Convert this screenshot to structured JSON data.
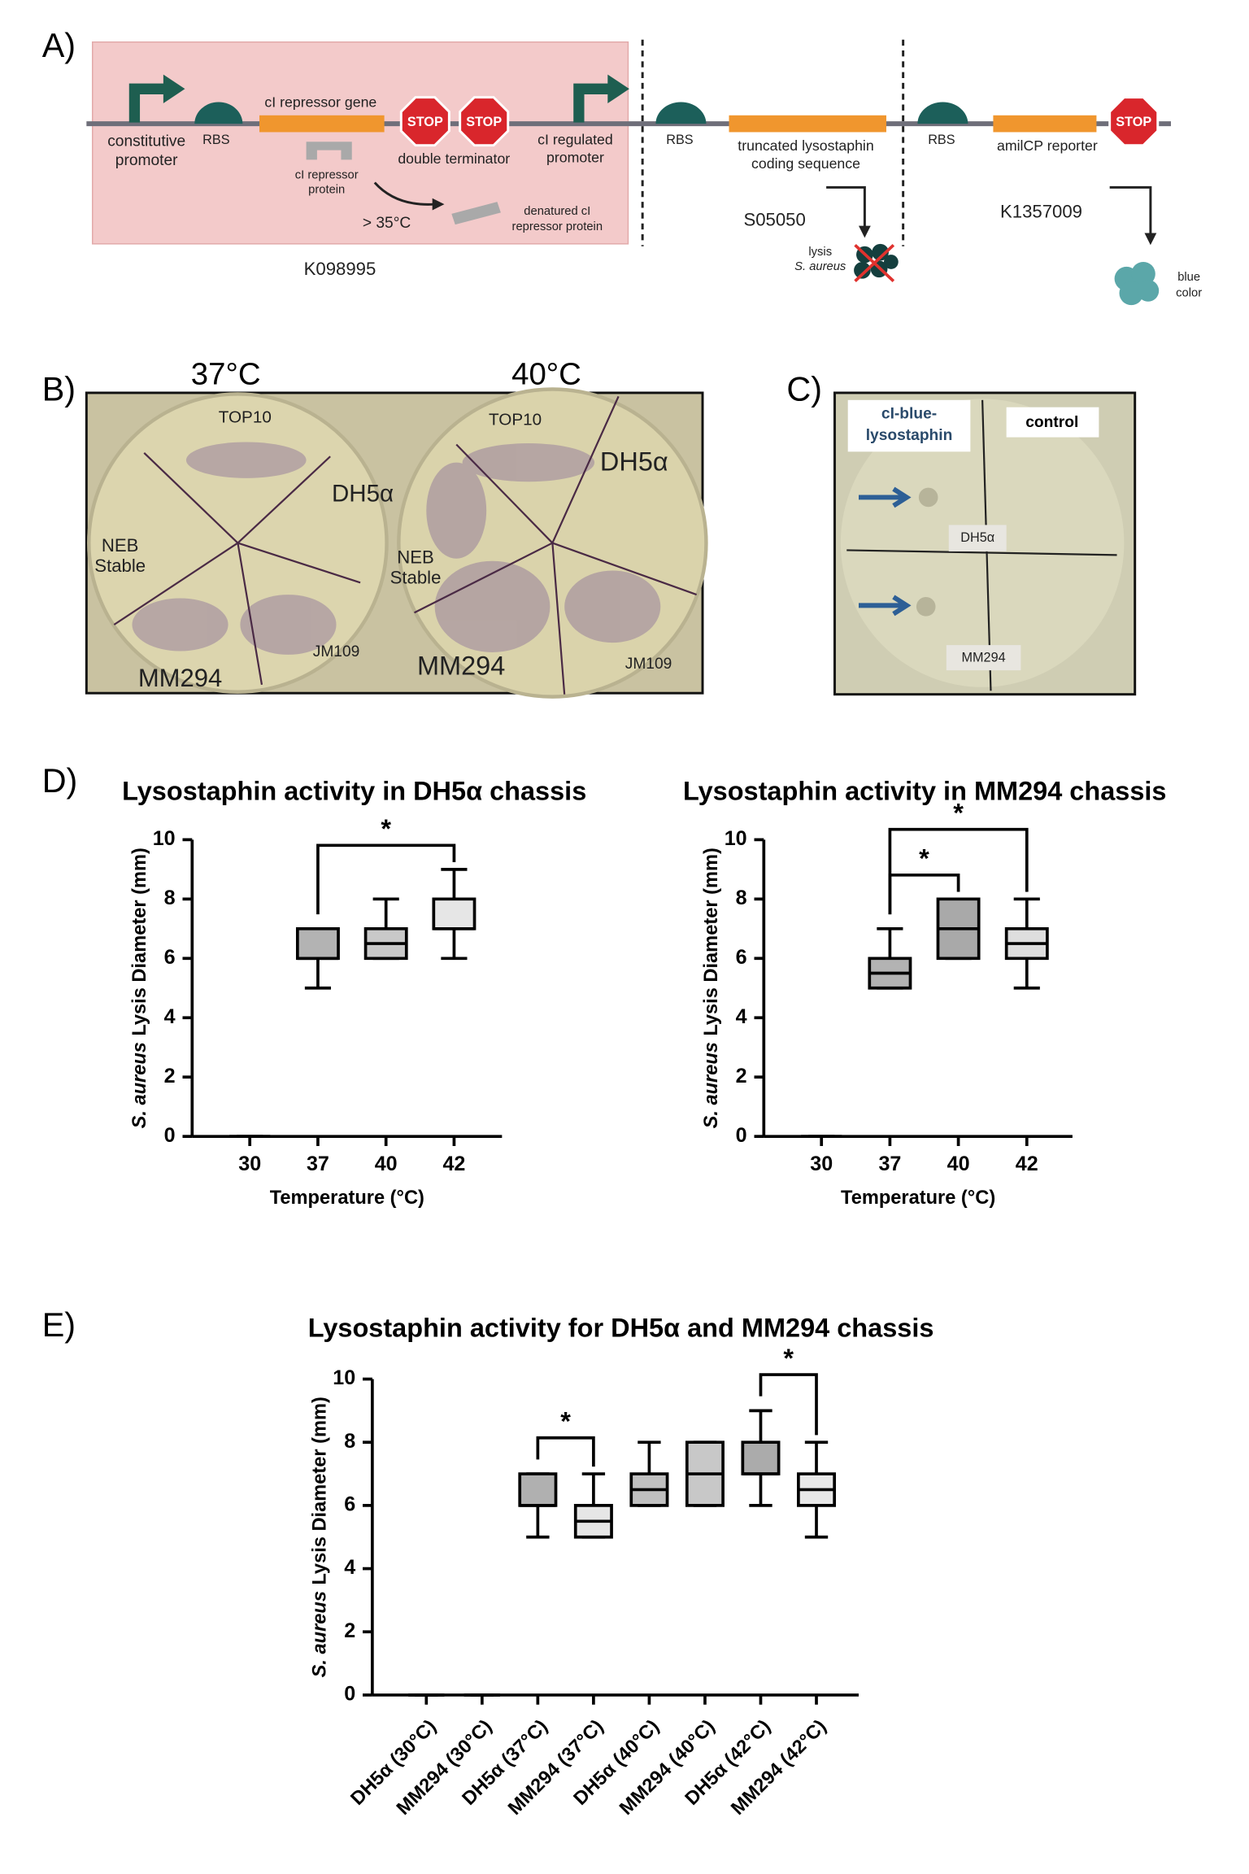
{
  "panel_labels": [
    "A)",
    "B)",
    "C)",
    "D)",
    "E)"
  ],
  "diagram": {
    "constitutive_promoter": [
      "constitutive",
      "promoter"
    ],
    "rbs": "RBS",
    "ci_gene": "cI repressor gene",
    "ci_protein": [
      "cI repressor",
      "protein"
    ],
    "temperature": "> 35°C",
    "double_terminator": "double terminator",
    "denatured": [
      "denatured cI",
      "repressor protein"
    ],
    "regulated_promoter": [
      "cI regulated",
      "promoter"
    ],
    "part_1": "K098995",
    "lysostaphin_cds": [
      "truncated lysostaphin",
      "coding sequence"
    ],
    "part_2": "S05050",
    "lysis": [
      "lysis",
      "S. aureus"
    ],
    "reporter": "amilCP reporter",
    "part_3": "K1357009",
    "blue": [
      "blue",
      "color"
    ],
    "stop": "STOP"
  },
  "plates": {
    "left_title": "37°C",
    "right_title": "40°C",
    "top10": "TOP10",
    "dh5a": "DH5α",
    "neb_stable": [
      "NEB",
      "Stable"
    ],
    "mm294": "MM294",
    "jm109": "JM109",
    "c_device": [
      "cI-blue-",
      "lysostaphin"
    ],
    "c_control": "control",
    "c_dh5a": "DH5α",
    "c_mm294": "MM294"
  },
  "chart_data": [
    {
      "type": "box",
      "title": "Lysostaphin activity in DH5α chassis",
      "ylabel": {
        "italic": "S. aureus",
        "text": "Lysis Diameter (mm)"
      },
      "xlabel": "Temperature (°C)",
      "categories": [
        "30",
        "37",
        "40",
        "42"
      ],
      "values": [
        [
          0,
          0,
          0,
          0,
          0
        ],
        [
          5,
          6,
          6,
          7,
          7
        ],
        [
          6,
          6,
          6.5,
          7,
          8
        ],
        [
          6,
          7,
          7,
          8,
          9
        ]
      ],
      "colors": [
        "#ffffff",
        "#b3b3b3",
        "#c9c9c9",
        "#e6e6e6"
      ],
      "ylim": [
        0,
        10
      ],
      "yticks": [
        0,
        2,
        4,
        6,
        8,
        10
      ],
      "annotations": [
        {
          "text": "*",
          "between": [
            "37",
            "42"
          ]
        }
      ]
    },
    {
      "type": "box",
      "title": "Lysostaphin activity in MM294 chassis",
      "ylabel": {
        "italic": "S. aureus",
        "text": "Lysis Diameter (mm)"
      },
      "xlabel": "Temperature (°C)",
      "categories": [
        "30",
        "37",
        "40",
        "42"
      ],
      "values": [
        [
          0,
          0,
          0,
          0,
          0
        ],
        [
          5,
          5,
          5.5,
          6,
          7
        ],
        [
          6,
          6,
          7,
          8,
          8
        ],
        [
          5,
          6,
          6.5,
          7,
          8
        ]
      ],
      "colors": [
        "#ffffff",
        "#b3b3b3",
        "#a9a9a9",
        "#dedede"
      ],
      "ylim": [
        0,
        10
      ],
      "yticks": [
        0,
        2,
        4,
        6,
        8,
        10
      ],
      "annotations": [
        {
          "text": "*",
          "between": [
            "37",
            "40"
          ]
        },
        {
          "text": "*",
          "between": [
            "37",
            "42"
          ]
        }
      ]
    },
    {
      "type": "box",
      "title": "Lysostaphin activity for DH5α and MM294 chassis",
      "ylabel": {
        "italic": "S. aureus",
        "text": "Lysis Diameter (mm)"
      },
      "categories": [
        "DH5α (30°C)",
        "MM294 (30°C)",
        "DH5α (37°C)",
        "MM294 (37°C)",
        "DH5α (40°C)",
        "MM294 (40°C)",
        "DH5α (42°C)",
        "MM294 (42°C)"
      ],
      "values": [
        [
          0,
          0,
          0,
          0,
          0
        ],
        [
          0,
          0,
          0,
          0,
          0
        ],
        [
          5,
          6,
          6,
          7,
          7
        ],
        [
          5,
          5,
          5.5,
          6,
          7
        ],
        [
          6,
          6,
          6.5,
          7,
          8
        ],
        [
          6,
          6,
          7,
          8,
          8
        ],
        [
          6,
          7,
          7,
          8,
          9
        ],
        [
          5,
          6,
          6.5,
          7,
          8
        ]
      ],
      "colors": [
        "#ffffff",
        "#ffffff",
        "#b0b0b0",
        "#e6e6e6",
        "#c0c0c0",
        "#c8c8c8",
        "#ababab",
        "#e8e8e8"
      ],
      "ylim": [
        0,
        10
      ],
      "yticks": [
        0,
        2,
        4,
        6,
        8,
        10
      ],
      "annotations": [
        {
          "text": "*",
          "between": [
            "DH5α (37°C)",
            "MM294 (37°C)"
          ]
        },
        {
          "text": "*",
          "between": [
            "DH5α (42°C)",
            "MM294 (42°C)"
          ]
        }
      ]
    }
  ]
}
